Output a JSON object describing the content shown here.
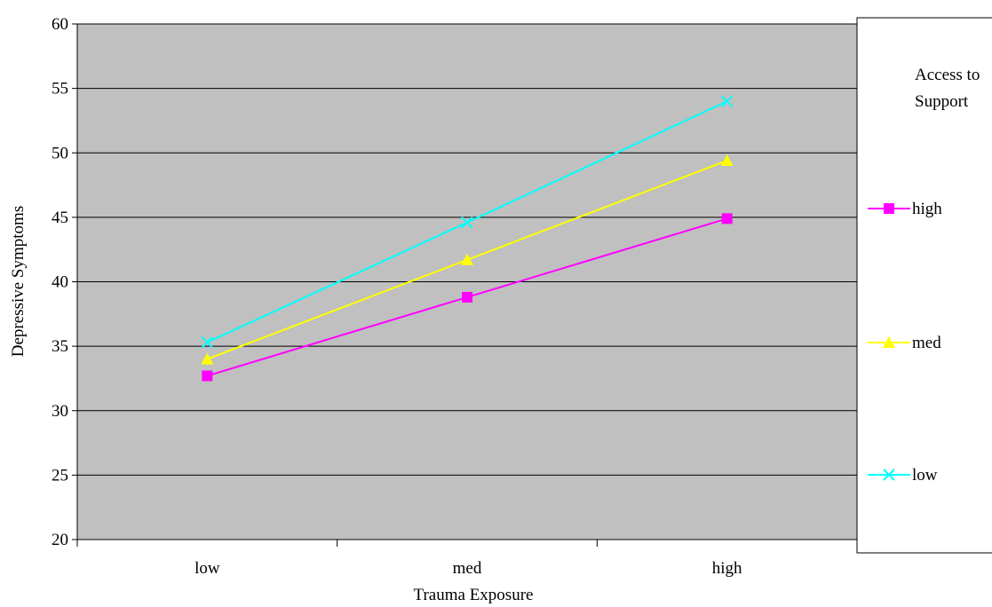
{
  "chart_data": {
    "type": "line",
    "xlabel": "Trauma Exposure",
    "ylabel": "Depressive Symptoms",
    "categories": [
      "low",
      "med",
      "high"
    ],
    "ylim": [
      20,
      60
    ],
    "yticks": [
      "20",
      "25",
      "30",
      "35",
      "40",
      "45",
      "50",
      "55",
      "60"
    ],
    "grid": true,
    "plot_background": "#c0c0c0",
    "legend": {
      "title": "Access to Support",
      "title_lines": [
        "Access to",
        "Support"
      ],
      "placement": "right"
    },
    "series": [
      {
        "name": "high",
        "values": [
          32.7,
          38.8,
          44.9
        ],
        "color": "#ff00ff",
        "marker": "square"
      },
      {
        "name": "med",
        "values": [
          34.0,
          41.7,
          49.4
        ],
        "color": "#ffff00",
        "marker": "triangle"
      },
      {
        "name": "low",
        "values": [
          35.3,
          44.6,
          54.0
        ],
        "color": "#00ffff",
        "marker": "x"
      }
    ]
  }
}
